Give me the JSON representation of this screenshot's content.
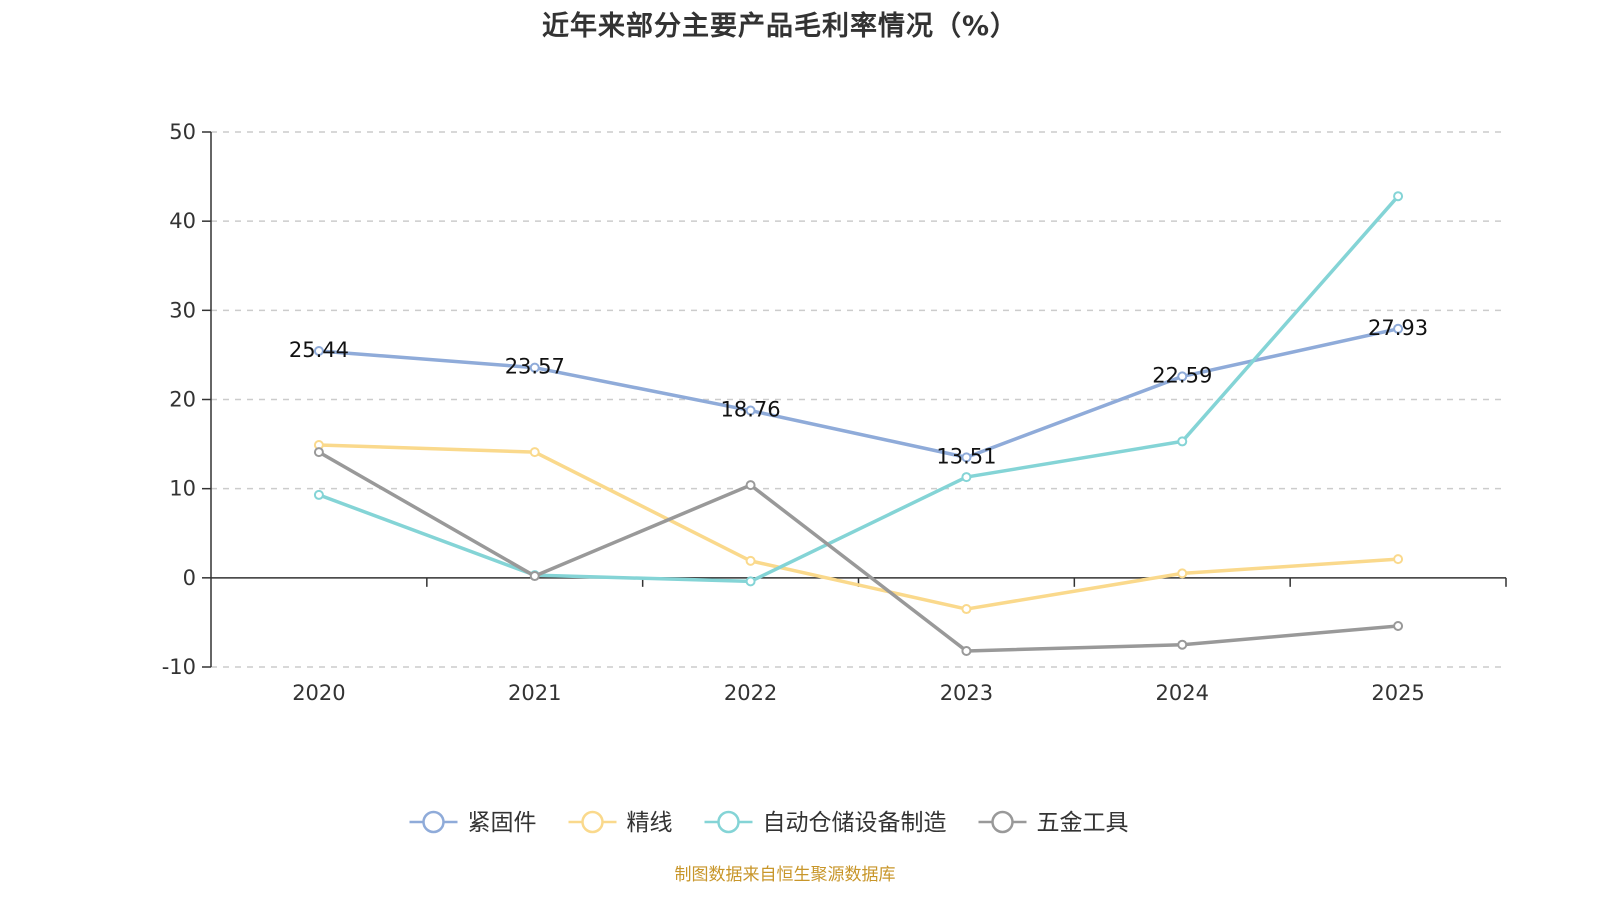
{
  "title": "近年来部分主要产品毛利率情况（%）",
  "source": "制图数据来自恒生聚源数据库",
  "chart_data": {
    "type": "line",
    "title": "近年来部分主要产品毛利率情况（%）",
    "xlabel": "",
    "ylabel": "",
    "categories": [
      "2020",
      "2021",
      "2022",
      "2023",
      "2024",
      "2025"
    ],
    "ylim": [
      -10,
      50
    ],
    "yticks": [
      -10,
      0,
      10,
      20,
      30,
      40,
      50
    ],
    "grid": true,
    "legend_position": "bottom-center",
    "series": [
      {
        "name": "紧固件",
        "color": "#8fabd9",
        "values": [
          25.44,
          23.57,
          18.76,
          13.51,
          22.59,
          27.93
        ],
        "show_labels": true
      },
      {
        "name": "精线",
        "color": "#fad98c",
        "values": [
          14.9,
          14.1,
          1.9,
          -3.5,
          0.5,
          2.1
        ],
        "show_labels": false
      },
      {
        "name": "自动仓储设备制造",
        "color": "#84d4d6",
        "values": [
          9.3,
          0.3,
          -0.4,
          11.3,
          15.3,
          42.8
        ],
        "show_labels": false
      },
      {
        "name": "五金工具",
        "color": "#999999",
        "values": [
          14.1,
          0.2,
          10.4,
          -8.2,
          -7.5,
          -5.4
        ],
        "show_labels": false
      }
    ]
  }
}
